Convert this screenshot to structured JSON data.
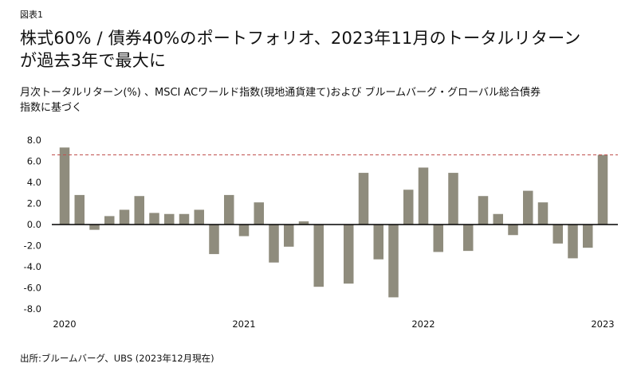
{
  "figure_label": "図表1",
  "title_line1": "株式60% / 債券40%のポートフォリオ、2023年11月のトータルリターン",
  "title_line2": "が過去3年で最大に",
  "subtitle_line1": "月次トータルリターン(%) 、MSCI ACワールド指数(現地通貨建て)および ブルームバーグ・グローバル総合債券",
  "subtitle_line2": "指数に基づく",
  "source": "出所:ブルームバーグ、UBS (2023年12月現在)",
  "colors": {
    "bar": "#8f8c7d",
    "reference_line": "#c0504d",
    "zero_line": "#000000"
  },
  "chart_data": {
    "type": "bar",
    "ylim": [
      -8,
      8
    ],
    "y_ticks": [
      "8.0",
      "6.0",
      "4.0",
      "2.0",
      "0.0",
      "-2.0",
      "-4.0",
      "-6.0",
      "-8.0"
    ],
    "x_tick_labels": [
      "2020",
      "2021",
      "2022",
      "2023"
    ],
    "reference_line": 6.6,
    "grid": false,
    "values": [
      7.3,
      2.8,
      -0.5,
      0.8,
      1.4,
      2.7,
      1.1,
      1.0,
      1.0,
      1.4,
      -2.8,
      2.8,
      -1.1,
      2.1,
      -3.6,
      -2.1,
      0.3,
      -5.9,
      0,
      -5.6,
      4.9,
      -3.3,
      -6.9,
      3.3,
      5.4,
      -2.6,
      4.9,
      -2.5,
      2.7,
      1.0,
      -1.0,
      3.2,
      2.1,
      -1.8,
      -3.2,
      -2.2,
      6.6
    ]
  }
}
